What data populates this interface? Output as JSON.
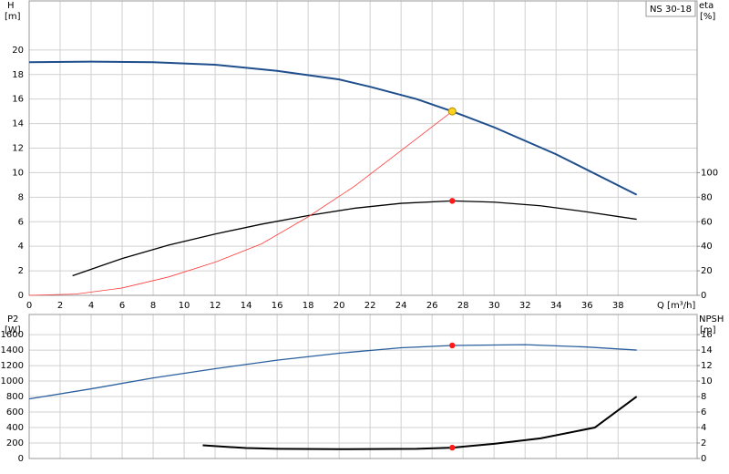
{
  "chart_data": [
    {
      "type": "line",
      "title": "NS 30-18",
      "ylabel": "H",
      "yunit": "[m]",
      "y2label": "eta",
      "y2unit": "[%]",
      "xlabel": "Q [m³/h]",
      "xlim": [
        0,
        43.1
      ],
      "xticks": [
        0,
        2,
        4,
        6,
        8,
        10,
        12,
        14,
        16,
        18,
        20,
        22,
        24,
        26,
        28,
        30,
        32,
        34,
        36,
        38
      ],
      "ylim": [
        0,
        24
      ],
      "yticks": [
        0,
        2,
        4,
        6,
        8,
        10,
        12,
        14,
        16,
        18,
        20
      ],
      "y2lim": [
        0,
        240
      ],
      "y2ticks": [
        0,
        20,
        40,
        60,
        80,
        100
      ],
      "grid": true,
      "show_xtick_labels": true,
      "series": [
        {
          "color": "#1f4e8c",
          "width": 2,
          "axis": "y",
          "x": [
            0,
            4,
            8,
            12,
            16,
            20,
            22,
            25,
            27.3,
            30,
            34,
            39.2
          ],
          "values": [
            19,
            19.05,
            19,
            18.8,
            18.3,
            17.6,
            17,
            16,
            15,
            13.7,
            11.5,
            8.2
          ]
        },
        {
          "color": "#000000",
          "width": 1.3,
          "axis": "y2",
          "x": [
            2.8,
            6,
            9,
            12,
            15,
            18,
            21,
            24,
            27.3,
            30,
            33,
            36,
            39.2
          ],
          "values": [
            16,
            30,
            41,
            50,
            58,
            65,
            71,
            75,
            77,
            76,
            73,
            68,
            62
          ]
        },
        {
          "color": "#ff3b3b",
          "width": 0.8,
          "axis": "y",
          "x": [
            0,
            3,
            6,
            9,
            12,
            15,
            18,
            21,
            24,
            27.3
          ],
          "values": [
            0,
            0.1,
            0.6,
            1.5,
            2.7,
            4.2,
            6.4,
            8.9,
            11.8,
            15
          ]
        }
      ],
      "markers": [
        {
          "x": 27.3,
          "value": 15,
          "axis": "y",
          "color": "#ffd21f"
        },
        {
          "x": 27.3,
          "value": 77,
          "axis": "y2",
          "color": "#ff1a1a"
        }
      ]
    },
    {
      "type": "line",
      "ylabel": "P2",
      "yunit": "[W]",
      "y2label": "NPSH",
      "y2unit": "[m]",
      "xlim": [
        0,
        43.1
      ],
      "xticks": [
        0,
        2,
        4,
        6,
        8,
        10,
        12,
        14,
        16,
        18,
        20,
        22,
        24,
        26,
        28,
        30,
        32,
        34,
        36,
        38
      ],
      "ylim": [
        0,
        1860
      ],
      "yticks": [
        0,
        200,
        400,
        600,
        800,
        1000,
        1200,
        1400,
        1600
      ],
      "y2lim": [
        0,
        18.6
      ],
      "y2ticks": [
        0,
        2,
        4,
        6,
        8,
        10,
        12,
        14,
        16
      ],
      "grid": true,
      "show_xtick_labels": false,
      "series": [
        {
          "color": "#2a5f9e",
          "width": 1.3,
          "axis": "y",
          "x": [
            0,
            4,
            8,
            12,
            16,
            20,
            24,
            27.3,
            32,
            36,
            39.2
          ],
          "values": [
            770,
            900,
            1040,
            1160,
            1270,
            1360,
            1430,
            1460,
            1470,
            1440,
            1400
          ]
        },
        {
          "color": "#000000",
          "width": 2,
          "axis": "y2",
          "x": [
            11.2,
            14,
            16,
            20,
            25,
            27.3,
            30,
            33,
            36.5,
            39.2
          ],
          "values": [
            1.7,
            1.35,
            1.25,
            1.2,
            1.25,
            1.4,
            1.9,
            2.6,
            4.0,
            8.0
          ]
        }
      ],
      "markers": [
        {
          "x": 27.3,
          "value": 1460,
          "axis": "y",
          "color": "#ff1a1a"
        },
        {
          "x": 27.3,
          "value": 1.4,
          "axis": "y2",
          "color": "#ff1a1a"
        }
      ]
    }
  ]
}
